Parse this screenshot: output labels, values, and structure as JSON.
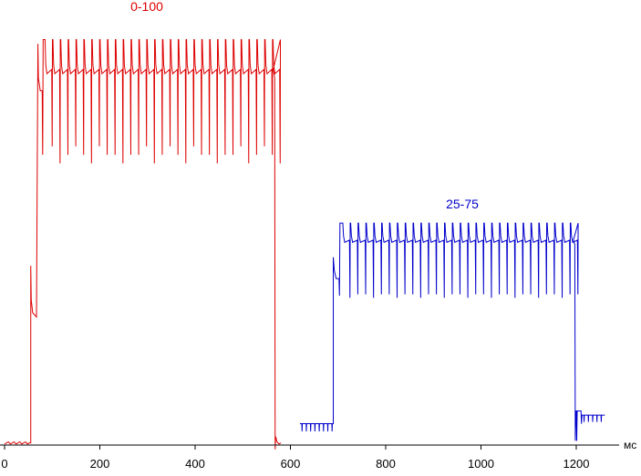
{
  "chart_data": {
    "type": "line",
    "xlabel": "",
    "ylabel": "",
    "x_unit": "мс",
    "xlim": [
      0,
      1290
    ],
    "ylim": [
      0,
      100
    ],
    "x_ticks": [
      0,
      200,
      400,
      600,
      800,
      1000,
      1200
    ],
    "grid": false,
    "legend": "none",
    "series": [
      {
        "name": "0-100",
        "color": "#dd0000",
        "start_ms": 0,
        "end_ms": 580,
        "rise_ms": 55,
        "mid_level": 32,
        "shelf_ms": 70,
        "shelf_level": 86,
        "fall_ms": 568,
        "top_level": 95,
        "pulse_start_ms": 85,
        "pulse_end_ms": 565,
        "pulse_period_ms": 16.5,
        "pulse_dip_level": 68,
        "base_level": 0.5
      },
      {
        "name": "25-75",
        "color": "#0000cc",
        "start_ms": 620,
        "end_ms": 1260,
        "rise_ms": 690,
        "fall_ms": 1198,
        "base_level": 5,
        "top_level": 52,
        "shelf_level": 42,
        "pulse_start_ms": 710,
        "pulse_end_ms": 1195,
        "pulse_period_ms": 16.5,
        "pulse_dip_level": 35,
        "end_level": 7
      }
    ]
  }
}
